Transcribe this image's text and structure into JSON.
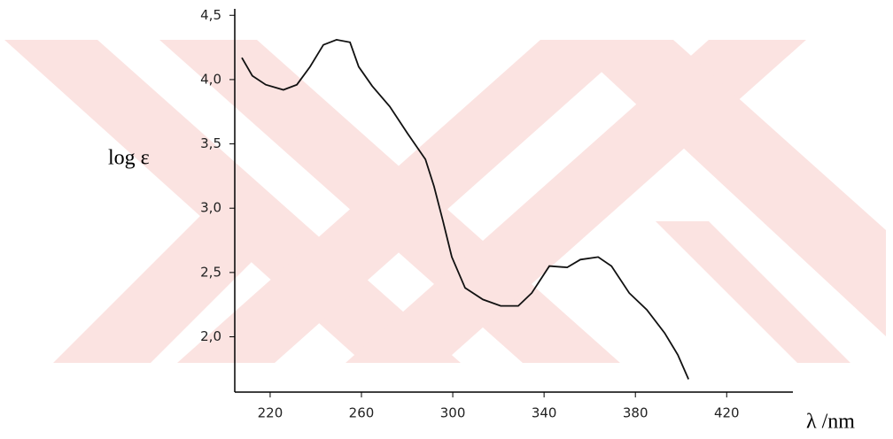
{
  "chart_data": {
    "type": "line",
    "y_label": "log ε",
    "x_label": "λ /nm",
    "x": [
      207.6,
      212.2,
      218.1,
      225.8,
      231.7,
      237.5,
      243.3,
      249.1,
      255.0,
      258.8,
      264.7,
      272.4,
      280.2,
      288.0,
      291.8,
      295.7,
      299.6,
      305.4,
      313.2,
      321.0,
      328.7,
      334.6,
      342.3,
      350.1,
      355.9,
      363.7,
      369.5,
      377.3,
      385.0,
      392.8,
      398.6,
      403.3
    ],
    "values": [
      4.17,
      4.03,
      3.96,
      3.92,
      3.96,
      4.1,
      4.27,
      4.31,
      4.29,
      4.1,
      3.95,
      3.79,
      3.58,
      3.38,
      3.17,
      2.9,
      2.62,
      2.38,
      2.29,
      2.24,
      2.24,
      2.34,
      2.55,
      2.54,
      2.6,
      2.62,
      2.55,
      2.34,
      2.21,
      2.03,
      1.86,
      1.67
    ],
    "color": "#111111",
    "xlim": [
      204.5,
      449
    ],
    "ylim": [
      1.57,
      4.55
    ],
    "xticks": [
      220,
      260,
      300,
      340,
      380,
      420
    ],
    "yticks": [
      {
        "value": 2.0,
        "label": "2,0"
      },
      {
        "value": 2.5,
        "label": "2,5"
      },
      {
        "value": 3.0,
        "label": "3,0"
      },
      {
        "value": 3.5,
        "label": "3,5"
      },
      {
        "value": 4.0,
        "label": "4,0"
      },
      {
        "value": 4.5,
        "label": "4,5"
      }
    ],
    "grid": false
  }
}
